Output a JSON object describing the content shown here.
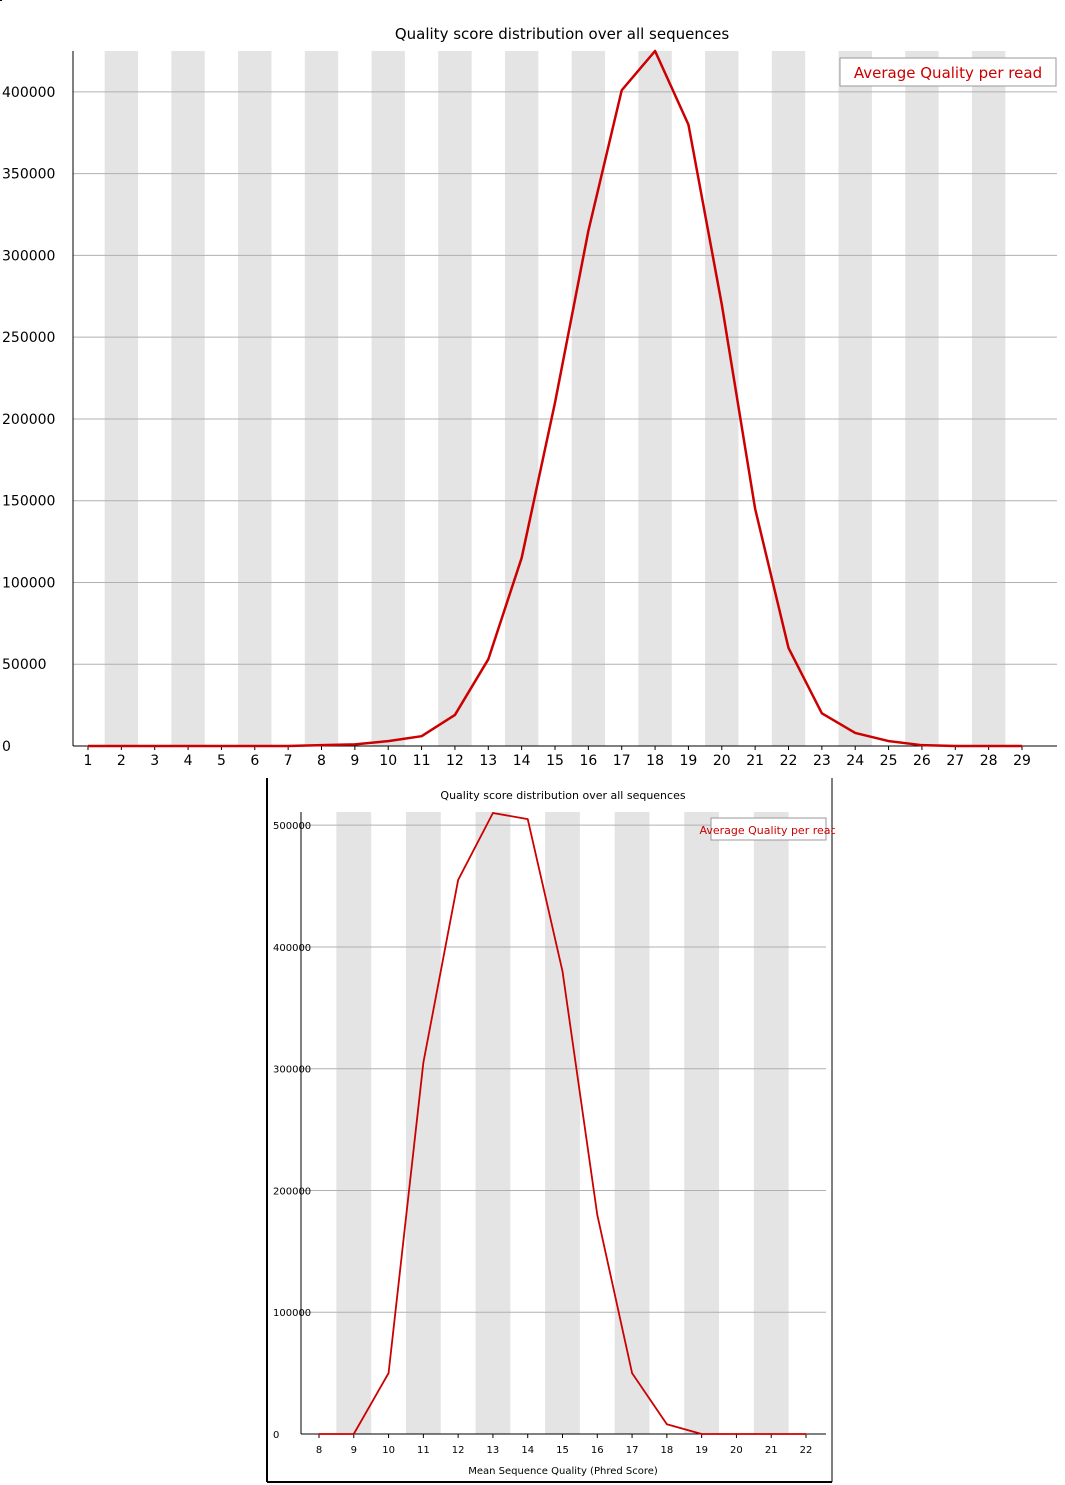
{
  "chart_data": [
    {
      "type": "line",
      "title": "Quality score distribution over all sequences",
      "xlabel": "",
      "ylabel": "",
      "legend": "top-right",
      "grid": true,
      "xlim": [
        1,
        29
      ],
      "ylim": [
        0,
        425000
      ],
      "x_ticks": [
        "1",
        "2",
        "3",
        "4",
        "5",
        "6",
        "7",
        "8",
        "9",
        "10",
        "11",
        "12",
        "13",
        "14",
        "15",
        "16",
        "17",
        "18",
        "19",
        "20",
        "21",
        "22",
        "23",
        "24",
        "25",
        "26",
        "27",
        "28",
        "29"
      ],
      "y_ticks": [
        "0",
        "50000",
        "100000",
        "150000",
        "200000",
        "250000",
        "300000",
        "350000",
        "400000"
      ],
      "series": [
        {
          "name": "Average Quality per read",
          "color": "#cc0000",
          "x": [
            1,
            2,
            3,
            4,
            5,
            6,
            7,
            8,
            9,
            10,
            11,
            12,
            13,
            14,
            15,
            16,
            17,
            18,
            19,
            20,
            21,
            22,
            23,
            24,
            25,
            26,
            27,
            28,
            29
          ],
          "y": [
            0,
            0,
            0,
            0,
            0,
            0,
            0,
            500,
            1000,
            3000,
            6000,
            19000,
            53000,
            115000,
            210000,
            315000,
            401000,
            425000,
            380000,
            270000,
            145000,
            60000,
            20000,
            8000,
            3000,
            500,
            0,
            0,
            0
          ]
        }
      ]
    },
    {
      "type": "line",
      "title": "Quality score distribution over all sequences",
      "xlabel": "Mean Sequence Quality (Phred Score)",
      "ylabel": "",
      "legend": "top-right",
      "grid": true,
      "xlim": [
        8,
        22
      ],
      "ylim": [
        0,
        510000
      ],
      "x_ticks": [
        "8",
        "9",
        "10",
        "11",
        "12",
        "13",
        "14",
        "15",
        "16",
        "17",
        "18",
        "19",
        "20",
        "21",
        "22"
      ],
      "y_ticks": [
        "0",
        "100000",
        "200000",
        "300000",
        "400000",
        "500000"
      ],
      "series": [
        {
          "name": "Average Quality per read",
          "color": "#cc0000",
          "x": [
            8,
            9,
            10,
            11,
            12,
            13,
            14,
            15,
            16,
            17,
            18,
            19,
            20,
            21,
            22
          ],
          "y": [
            0,
            0,
            50000,
            305000,
            455000,
            510000,
            505000,
            380000,
            180000,
            50000,
            8000,
            0,
            0,
            0,
            0
          ]
        }
      ]
    }
  ]
}
